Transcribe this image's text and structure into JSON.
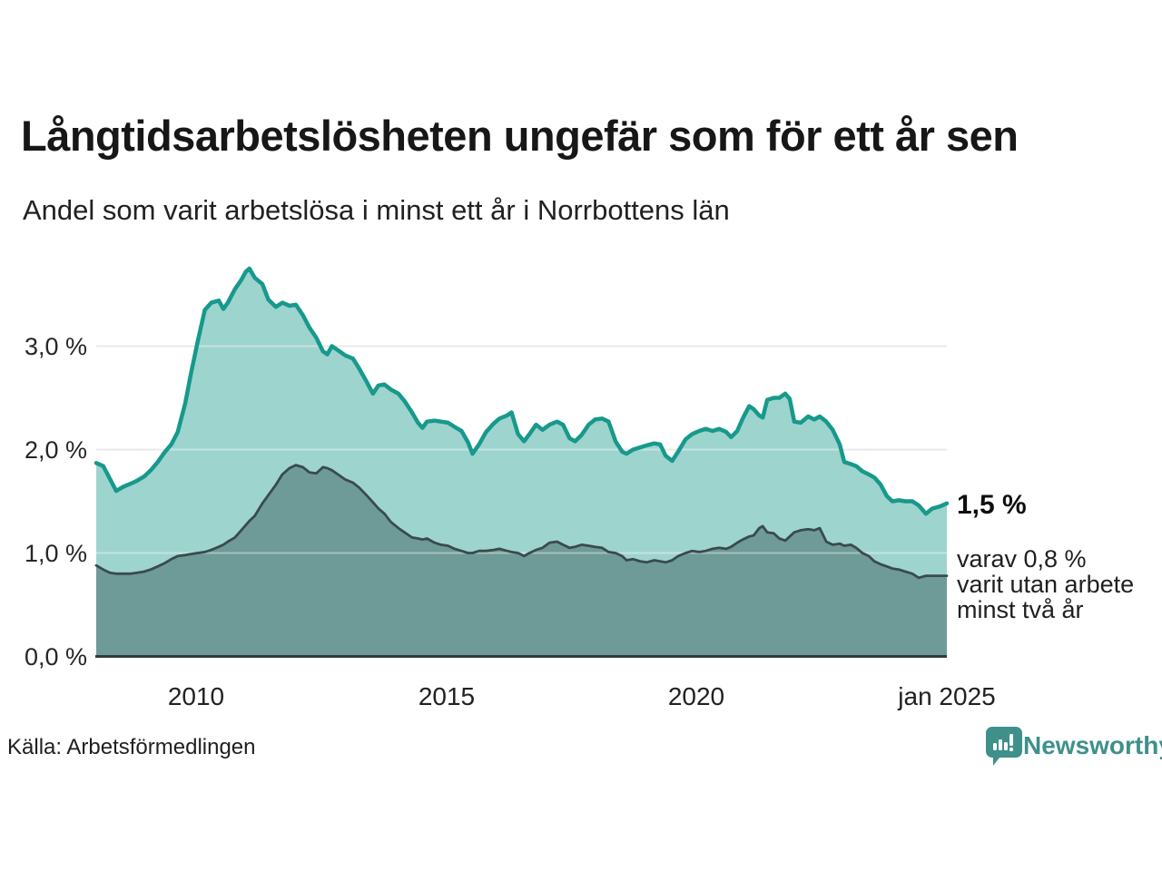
{
  "header": {
    "title": "Långtidsarbetslösheten ungefär som för ett år sen",
    "subtitle": "Andel som varit arbetslösa i minst ett år i Norrbottens län"
  },
  "chart_data": {
    "type": "area",
    "title": "Långtidsarbetslösheten ungefär som för ett år sen",
    "subtitle": "Andel som varit arbetslösa i minst ett år i Norrbottens län",
    "xlabel": "",
    "ylabel": "",
    "grid": true,
    "legend_position": "none",
    "xlim": [
      2008,
      2025
    ],
    "ylim": [
      0,
      3.9
    ],
    "x": [
      2008.0,
      2008.14,
      2008.27,
      2008.4,
      2008.54,
      2008.69,
      2008.82,
      2008.96,
      2009.09,
      2009.23,
      2009.36,
      2009.5,
      2009.63,
      2009.78,
      2009.9,
      2010.03,
      2010.17,
      2010.3,
      2010.45,
      2010.54,
      2010.63,
      2010.77,
      2010.9,
      2010.99,
      2011.06,
      2011.17,
      2011.32,
      2011.44,
      2011.59,
      2011.72,
      2011.86,
      2011.99,
      2012.13,
      2012.26,
      2012.4,
      2012.53,
      2012.62,
      2012.71,
      2012.86,
      2012.98,
      2013.13,
      2013.26,
      2013.4,
      2013.53,
      2013.64,
      2013.76,
      2013.89,
      2014.04,
      2014.16,
      2014.31,
      2014.43,
      2014.52,
      2014.61,
      2014.76,
      2014.89,
      2015.03,
      2015.16,
      2015.3,
      2015.43,
      2015.52,
      2015.65,
      2015.79,
      2015.94,
      2016.06,
      2016.21,
      2016.3,
      2016.43,
      2016.55,
      2016.66,
      2016.79,
      2016.92,
      2017.06,
      2017.21,
      2017.33,
      2017.46,
      2017.57,
      2017.7,
      2017.84,
      2017.97,
      2018.11,
      2018.24,
      2018.38,
      2018.51,
      2018.6,
      2018.73,
      2018.87,
      2019.0,
      2019.15,
      2019.27,
      2019.38,
      2019.51,
      2019.63,
      2019.78,
      2019.91,
      2020.05,
      2020.18,
      2020.32,
      2020.45,
      2020.59,
      2020.69,
      2020.81,
      2020.92,
      2021.05,
      2021.14,
      2021.25,
      2021.32,
      2021.41,
      2021.54,
      2021.65,
      2021.77,
      2021.86,
      2021.95,
      2022.08,
      2022.23,
      2022.35,
      2022.46,
      2022.59,
      2022.72,
      2022.86,
      2022.95,
      2023.08,
      2023.19,
      2023.31,
      2023.44,
      2023.55,
      2023.68,
      2023.8,
      2023.91,
      2024.04,
      2024.17,
      2024.31,
      2024.44,
      2024.58,
      2024.71,
      2024.86,
      2025.0
    ],
    "series": [
      {
        "name": "Andel arbetslösa minst ett år",
        "line_color": "#17998C",
        "fill_color": "#9ED4CE",
        "line_width": 4.5,
        "values": [
          1.87,
          1.84,
          1.72,
          1.6,
          1.64,
          1.67,
          1.7,
          1.74,
          1.8,
          1.88,
          1.97,
          2.05,
          2.17,
          2.45,
          2.75,
          3.05,
          3.35,
          3.42,
          3.44,
          3.36,
          3.42,
          3.55,
          3.64,
          3.72,
          3.75,
          3.66,
          3.6,
          3.45,
          3.38,
          3.42,
          3.39,
          3.4,
          3.3,
          3.18,
          3.08,
          2.95,
          2.92,
          3.0,
          2.95,
          2.91,
          2.88,
          2.78,
          2.66,
          2.54,
          2.62,
          2.63,
          2.58,
          2.54,
          2.47,
          2.36,
          2.26,
          2.21,
          2.27,
          2.28,
          2.27,
          2.26,
          2.22,
          2.18,
          2.07,
          1.96,
          2.05,
          2.17,
          2.25,
          2.3,
          2.33,
          2.36,
          2.15,
          2.08,
          2.15,
          2.24,
          2.19,
          2.24,
          2.27,
          2.24,
          2.11,
          2.08,
          2.14,
          2.24,
          2.29,
          2.3,
          2.27,
          2.08,
          1.98,
          1.96,
          2.0,
          2.02,
          2.04,
          2.06,
          2.05,
          1.94,
          1.89,
          1.98,
          2.1,
          2.15,
          2.18,
          2.2,
          2.18,
          2.2,
          2.17,
          2.12,
          2.18,
          2.3,
          2.42,
          2.39,
          2.33,
          2.31,
          2.48,
          2.5,
          2.5,
          2.54,
          2.49,
          2.27,
          2.26,
          2.32,
          2.29,
          2.32,
          2.27,
          2.19,
          2.05,
          1.88,
          1.86,
          1.84,
          1.79,
          1.76,
          1.73,
          1.66,
          1.55,
          1.5,
          1.51,
          1.5,
          1.5,
          1.46,
          1.38,
          1.43,
          1.45,
          1.48
        ]
      },
      {
        "name": "Varav utan arbete minst två år",
        "line_color": "#3A4A4D",
        "fill_color": "#6E9B97",
        "line_width": 2.8,
        "values": [
          0.88,
          0.84,
          0.81,
          0.8,
          0.8,
          0.8,
          0.81,
          0.82,
          0.84,
          0.87,
          0.9,
          0.94,
          0.97,
          0.98,
          0.99,
          1.0,
          1.01,
          1.03,
          1.06,
          1.08,
          1.11,
          1.15,
          1.22,
          1.27,
          1.31,
          1.36,
          1.48,
          1.56,
          1.66,
          1.76,
          1.82,
          1.85,
          1.83,
          1.78,
          1.77,
          1.83,
          1.82,
          1.8,
          1.75,
          1.71,
          1.68,
          1.63,
          1.56,
          1.49,
          1.43,
          1.38,
          1.3,
          1.24,
          1.2,
          1.15,
          1.14,
          1.13,
          1.14,
          1.1,
          1.08,
          1.07,
          1.04,
          1.02,
          1.0,
          1.0,
          1.02,
          1.02,
          1.03,
          1.04,
          1.02,
          1.01,
          1.0,
          0.97,
          1.0,
          1.03,
          1.05,
          1.1,
          1.11,
          1.08,
          1.05,
          1.06,
          1.08,
          1.07,
          1.06,
          1.05,
          1.01,
          1.0,
          0.97,
          0.93,
          0.94,
          0.92,
          0.91,
          0.93,
          0.92,
          0.91,
          0.93,
          0.97,
          1.0,
          1.02,
          1.01,
          1.02,
          1.04,
          1.05,
          1.04,
          1.06,
          1.1,
          1.13,
          1.16,
          1.17,
          1.24,
          1.26,
          1.2,
          1.19,
          1.14,
          1.12,
          1.16,
          1.2,
          1.22,
          1.23,
          1.22,
          1.24,
          1.11,
          1.08,
          1.09,
          1.07,
          1.08,
          1.05,
          1.0,
          0.97,
          0.92,
          0.89,
          0.87,
          0.85,
          0.84,
          0.82,
          0.8,
          0.76,
          0.78,
          0.78,
          0.78,
          0.78
        ]
      }
    ],
    "yticks": [
      {
        "value": 0,
        "label": "0,0 %"
      },
      {
        "value": 1,
        "label": "1,0 %"
      },
      {
        "value": 2,
        "label": "2,0 %"
      },
      {
        "value": 3,
        "label": "3,0 %"
      }
    ],
    "xticks": [
      {
        "value": 2010,
        "label": "2010"
      },
      {
        "value": 2015,
        "label": "2015"
      },
      {
        "value": 2020,
        "label": "2020"
      },
      {
        "value": 2025,
        "label": "jan 2025"
      }
    ],
    "annotations": {
      "latest_total": "1,5 %",
      "sub_line1": "varav 0,8 %",
      "sub_line2": "varit utan arbete",
      "sub_line3": "minst två år"
    },
    "colors": {
      "gridline": "#dbdbdf",
      "axis_line": "#333a3c",
      "grid_overlay_on_fill": "rgba(255,255,255,0.38)"
    }
  },
  "footer": {
    "source": "Källa: Arbetsförmedlingen",
    "brand": "Newsworthy",
    "brand_color": "#3F908B",
    "logo_icon": "bar-chart-speech-bubble"
  }
}
